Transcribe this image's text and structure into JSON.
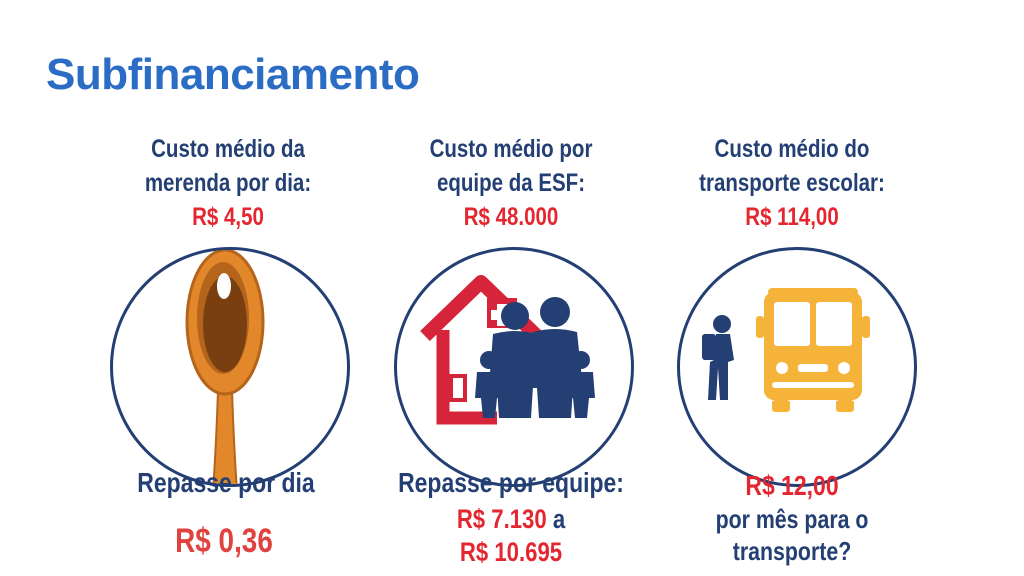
{
  "title": "Subfinanciamento",
  "columns": [
    {
      "heading": [
        "Custo médio da",
        "merenda por dia:"
      ],
      "price": "R$ 4,50",
      "icon": "spoon-icon",
      "footer_label": "Repasse por dia",
      "footer_value": "R$ 0,36"
    },
    {
      "heading": [
        "Custo médio por",
        "equipe da ESF:"
      ],
      "price": "R$ 48.000",
      "icon": "health-family-home-icon",
      "footer_label": "Repasse por equipe:",
      "footer_value_1": "R$ 7.130",
      "footer_connector": "a",
      "footer_value_2": "R$ 10.695"
    },
    {
      "heading": [
        "Custo médio do",
        "transporte escolar:"
      ],
      "price": "R$ 114,00",
      "icon": "school-bus-student-icon",
      "footer_value": "R$ 12,00",
      "footer_text": [
        "por mês para o",
        "transporte?"
      ]
    }
  ],
  "colors": {
    "title": "#2b6cc4",
    "navy": "#233f73",
    "red": "#e3262f",
    "spoon": "#e2872a",
    "bus": "#f6b33a"
  }
}
